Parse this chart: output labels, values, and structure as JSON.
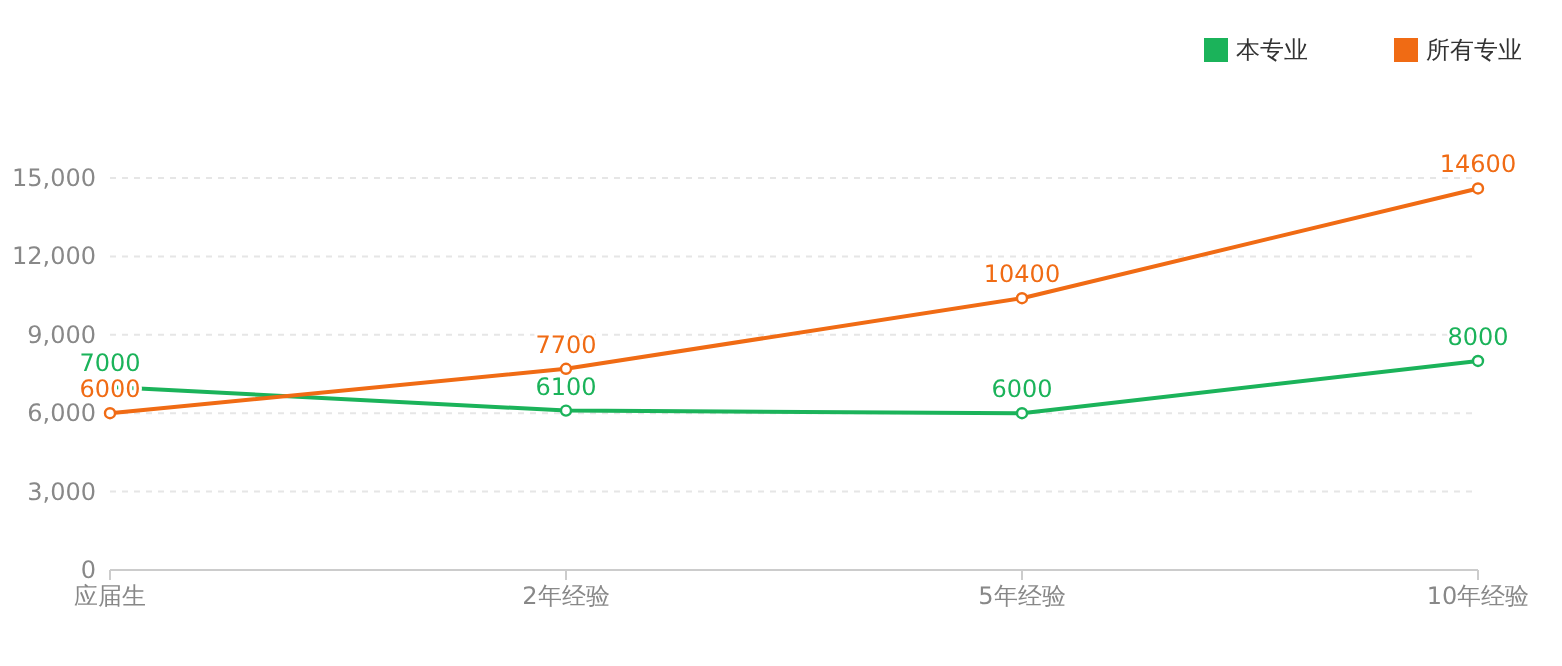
{
  "chart_data": {
    "type": "line",
    "categories": [
      "应届生",
      "2年经验",
      "5年经验",
      "10年经验"
    ],
    "series": [
      {
        "name": "本专业",
        "color": "#1bb35a",
        "values": [
          7000,
          6100,
          6000,
          8000
        ]
      },
      {
        "name": "所有专业",
        "color": "#f06b14",
        "values": [
          6000,
          7700,
          10400,
          14600
        ]
      }
    ],
    "ylim": [
      0,
      15000
    ],
    "yticks": [
      0,
      {
        "value": 3000,
        "label": "3,000"
      },
      {
        "value": 6000,
        "label": "6,000"
      },
      {
        "value": 9000,
        "label": "9,000"
      },
      {
        "value": 12000,
        "label": "12,000"
      },
      {
        "value": 15000,
        "label": "15,000"
      }
    ],
    "grid": "y",
    "legend": "top right",
    "marker": "circle",
    "line_style": "solid",
    "data_labels": true
  }
}
